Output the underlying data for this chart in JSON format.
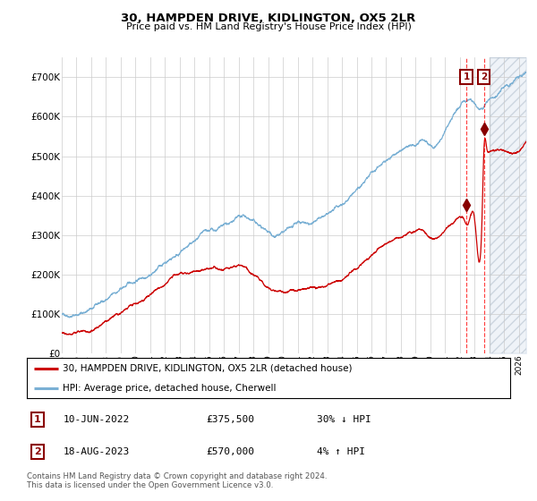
{
  "title": "30, HAMPDEN DRIVE, KIDLINGTON, OX5 2LR",
  "subtitle": "Price paid vs. HM Land Registry's House Price Index (HPI)",
  "background_color": "#ffffff",
  "plot_bg_color": "#ffffff",
  "grid_color": "#cccccc",
  "hpi_color": "#7ab0d4",
  "price_color": "#cc0000",
  "sale1_date_num": 2022.44,
  "sale1_price": 375500,
  "sale2_date_num": 2023.63,
  "sale2_price": 570000,
  "legend_entry1": "30, HAMPDEN DRIVE, KIDLINGTON, OX5 2LR (detached house)",
  "legend_entry2": "HPI: Average price, detached house, Cherwell",
  "table_row1": [
    "1",
    "10-JUN-2022",
    "£375,500",
    "30% ↓ HPI"
  ],
  "table_row2": [
    "2",
    "18-AUG-2023",
    "£570,000",
    "4% ↑ HPI"
  ],
  "footer": "Contains HM Land Registry data © Crown copyright and database right 2024.\nThis data is licensed under the Open Government Licence v3.0.",
  "ylim": [
    0,
    750000
  ],
  "xlim_start": 1995.0,
  "xlim_end": 2026.5,
  "yticks": [
    0,
    100000,
    200000,
    300000,
    400000,
    500000,
    600000,
    700000
  ],
  "ytick_labels": [
    "£0",
    "£100K",
    "£200K",
    "£300K",
    "£400K",
    "£500K",
    "£600K",
    "£700K"
  ],
  "xticks": [
    1995,
    1996,
    1997,
    1998,
    1999,
    2000,
    2001,
    2002,
    2003,
    2004,
    2005,
    2006,
    2007,
    2008,
    2009,
    2010,
    2011,
    2012,
    2013,
    2014,
    2015,
    2016,
    2017,
    2018,
    2019,
    2020,
    2021,
    2022,
    2023,
    2024,
    2025,
    2026
  ],
  "future_cutoff": 2024.0,
  "hpi_ctrl_t": [
    1995.0,
    1995.5,
    1996.0,
    1996.5,
    1997.0,
    1997.5,
    1998.0,
    1998.5,
    1999.0,
    1999.5,
    2000.0,
    2000.5,
    2001.0,
    2001.5,
    2002.0,
    2002.5,
    2003.0,
    2003.5,
    2004.0,
    2004.5,
    2005.0,
    2005.5,
    2006.0,
    2006.5,
    2007.0,
    2007.5,
    2008.0,
    2008.5,
    2009.0,
    2009.5,
    2010.0,
    2010.5,
    2011.0,
    2011.5,
    2012.0,
    2012.5,
    2013.0,
    2013.5,
    2014.0,
    2014.5,
    2015.0,
    2015.5,
    2016.0,
    2016.5,
    2017.0,
    2017.5,
    2018.0,
    2018.5,
    2019.0,
    2019.5,
    2020.0,
    2020.5,
    2021.0,
    2021.5,
    2022.0,
    2022.5,
    2022.75,
    2023.0,
    2023.25,
    2023.5,
    2023.75,
    2024.0,
    2024.5,
    2025.0,
    2025.5,
    2026.0
  ],
  "hpi_ctrl_v": [
    97000,
    100000,
    105000,
    112000,
    118000,
    127000,
    138000,
    148000,
    158000,
    168000,
    178000,
    192000,
    205000,
    218000,
    233000,
    248000,
    263000,
    275000,
    285000,
    292000,
    295000,
    296000,
    300000,
    305000,
    310000,
    308000,
    298000,
    282000,
    268000,
    262000,
    264000,
    268000,
    272000,
    275000,
    278000,
    282000,
    286000,
    295000,
    310000,
    330000,
    350000,
    368000,
    388000,
    408000,
    425000,
    440000,
    452000,
    462000,
    468000,
    470000,
    460000,
    468000,
    498000,
    530000,
    558000,
    572000,
    568000,
    560000,
    550000,
    542000,
    548000,
    558000,
    575000,
    595000,
    612000,
    625000
  ],
  "price_ctrl_t": [
    1995.0,
    1995.5,
    1996.0,
    1996.5,
    1997.0,
    1997.5,
    1998.0,
    1998.5,
    1999.0,
    1999.5,
    2000.0,
    2000.5,
    2001.0,
    2001.5,
    2002.0,
    2002.5,
    2003.0,
    2003.5,
    2004.0,
    2004.5,
    2005.0,
    2005.5,
    2006.0,
    2006.5,
    2007.0,
    2007.5,
    2008.0,
    2008.5,
    2009.0,
    2009.5,
    2010.0,
    2010.5,
    2011.0,
    2011.5,
    2012.0,
    2012.5,
    2013.0,
    2013.5,
    2014.0,
    2014.5,
    2015.0,
    2015.5,
    2016.0,
    2016.5,
    2017.0,
    2017.5,
    2018.0,
    2018.5,
    2019.0,
    2019.5,
    2020.0,
    2020.5,
    2021.0,
    2021.5,
    2022.0,
    2022.3,
    2022.44,
    2022.6,
    2023.0,
    2023.5,
    2023.63,
    2023.8,
    2024.0,
    2024.5,
    2025.0,
    2025.5,
    2026.0
  ],
  "price_ctrl_v": [
    53000,
    56000,
    60000,
    65000,
    72000,
    80000,
    90000,
    100000,
    110000,
    120000,
    130000,
    140000,
    152000,
    164000,
    175000,
    188000,
    200000,
    210000,
    220000,
    226000,
    228000,
    227000,
    230000,
    235000,
    238000,
    235000,
    225000,
    212000,
    198000,
    193000,
    195000,
    198000,
    200000,
    202000,
    204000,
    207000,
    210000,
    218000,
    230000,
    248000,
    262000,
    275000,
    290000,
    305000,
    316000,
    326000,
    334000,
    342000,
    346000,
    348000,
    336000,
    344000,
    364000,
    382000,
    395000,
    388000,
    375500,
    382000,
    388000,
    392000,
    570000,
    578000,
    568000,
    572000,
    578000,
    582000,
    588000
  ],
  "noise_seed": 42,
  "noise_scale": 1.0
}
